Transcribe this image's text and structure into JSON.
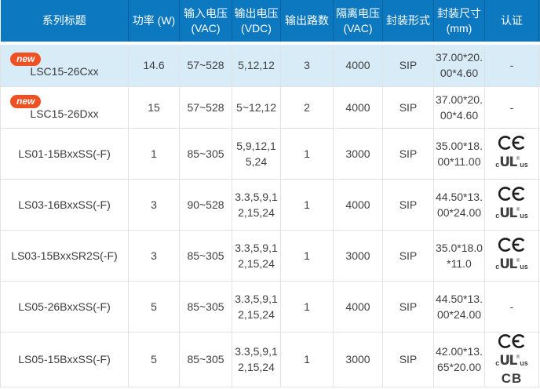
{
  "header": {
    "columns": [
      "系列标题",
      "功率 (W)",
      "输入电压\n(VAC)",
      "输出电压\n(VDC)",
      "输出路数",
      "隔离电压\n(VAC)",
      "封装形式",
      "封装尺寸\n(mm)",
      "认证"
    ]
  },
  "badge": {
    "label": "new"
  },
  "rows": [
    {
      "series": "LSC15-26Cxx",
      "is_new": true,
      "highlighted": true,
      "power": "14.6",
      "input_vac": "57~528",
      "output_vdc": "5,12,12",
      "output_channels": "3",
      "isolation_vac": "4000",
      "package": "SIP",
      "size_mm": "37.00*20.00*4.60",
      "certs": [
        "-"
      ]
    },
    {
      "series": "LSC15-26Dxx",
      "is_new": true,
      "highlighted": false,
      "power": "15",
      "input_vac": "57~528",
      "output_vdc": "5~12,12",
      "output_channels": "2",
      "isolation_vac": "4000",
      "package": "SIP",
      "size_mm": "37.00*20.00*4.60",
      "certs": [
        "-"
      ]
    },
    {
      "series": "LS01-15BxxSS(-F)",
      "is_new": false,
      "highlighted": false,
      "power": "1",
      "input_vac": "85~305",
      "output_vdc": "5,9,12,15,24",
      "output_channels": "1",
      "isolation_vac": "3000",
      "package": "SIP",
      "size_mm": "35.00*18.00*11.00",
      "certs": [
        "CE",
        "cULus"
      ]
    },
    {
      "series": "LS03-16BxxSS(-F)",
      "is_new": false,
      "highlighted": false,
      "power": "3",
      "input_vac": "90~528",
      "output_vdc": "3.3,5,9,12,15,24",
      "output_channels": "1",
      "isolation_vac": "4000",
      "package": "SIP",
      "size_mm": "44.50*13.00*24.00",
      "certs": [
        "CE",
        "cULus"
      ]
    },
    {
      "series": "LS03-15BxxSR2S(-F)",
      "is_new": false,
      "highlighted": false,
      "power": "3",
      "input_vac": "85~305",
      "output_vdc": "3.3,5,9,12,15,24",
      "output_channels": "1",
      "isolation_vac": "3000",
      "package": "SIP",
      "size_mm": "35.0*18.0*11.0",
      "certs": [
        "CE",
        "cULus"
      ]
    },
    {
      "series": "LS05-26BxxSS(-F)",
      "is_new": false,
      "highlighted": false,
      "power": "5",
      "input_vac": "85~305",
      "output_vdc": "3.3,5,9,12,15,24",
      "output_channels": "1",
      "isolation_vac": "4000",
      "package": "SIP",
      "size_mm": "44.50*13.00*24.00",
      "certs": [
        "-"
      ]
    },
    {
      "series": "LS05-15BxxSS(-F)",
      "is_new": false,
      "highlighted": false,
      "power": "5",
      "input_vac": "85~305",
      "output_vdc": "3.3,5,9,12,15,24",
      "output_channels": "1",
      "isolation_vac": "3000",
      "package": "SIP",
      "size_mm": "42.00*13.65*20.00",
      "certs": [
        "CE",
        "cULus",
        "CB"
      ]
    }
  ],
  "cert_icons": {
    "cULus": {
      "c": "c",
      "main": "UL",
      "reg": "®",
      "us": "us"
    },
    "CB": {
      "label": "CB"
    },
    "none": {
      "label": "-"
    }
  },
  "colors": {
    "header_bg": "#0b78c0",
    "highlight_row_bg": "#d8ecf8",
    "badge_bg": "#f05123",
    "grid_line": "#e2e2e2",
    "body_text": "#404040"
  }
}
